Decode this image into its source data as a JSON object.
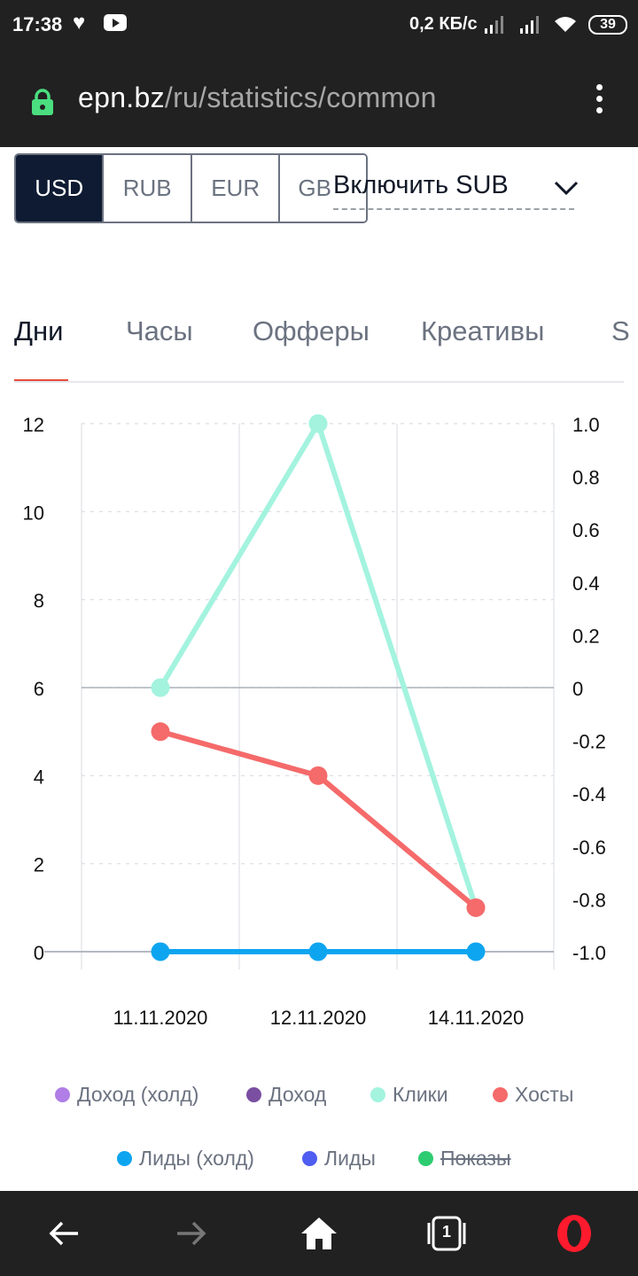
{
  "status_bar": {
    "time": "17:38",
    "network_speed": "0,2 КБ/с",
    "battery": "39"
  },
  "browser": {
    "url_host": "epn.bz",
    "url_path": "/ru/statistics/common"
  },
  "currency": {
    "options": [
      "USD",
      "RUB",
      "EUR",
      "GB"
    ],
    "selected": "USD"
  },
  "sub_toggle_label": "Включить SUB",
  "tabs": [
    {
      "label": "Дни",
      "active": true
    },
    {
      "label": "Часы",
      "active": false
    },
    {
      "label": "Офферы",
      "active": false
    },
    {
      "label": "Креативы",
      "active": false
    },
    {
      "label": "S",
      "active": false
    }
  ],
  "chart_data": {
    "type": "line",
    "categories": [
      "11.11.2020",
      "12.11.2020",
      "14.11.2020"
    ],
    "y_left": {
      "ylim": [
        0,
        12
      ],
      "ticks": [
        "0",
        "2",
        "4",
        "6",
        "8",
        "10",
        "12"
      ]
    },
    "y_right": {
      "ylim": [
        -1.0,
        1.0
      ],
      "ticks": [
        "-1.0",
        "-0.8",
        "-0.6",
        "-0.4",
        "-0.2",
        "0",
        "0.2",
        "0.4",
        "0.6",
        "0.8",
        "1.0"
      ]
    },
    "series": [
      {
        "name": "Клики",
        "color": "#a3f3df",
        "axis": "left",
        "values": [
          6,
          12,
          1
        ]
      },
      {
        "name": "Хосты",
        "color": "#f56a6a",
        "axis": "left",
        "values": [
          5,
          4,
          1
        ]
      },
      {
        "name": "Лиды (холд)",
        "color": "#0ea5f0",
        "axis": "left",
        "values": [
          0,
          0,
          0
        ]
      }
    ],
    "grid": true
  },
  "legend": [
    {
      "label": "Доход (холд)",
      "color": "#b07ee6",
      "hidden": false
    },
    {
      "label": "Доход",
      "color": "#7a4ea0",
      "hidden": false
    },
    {
      "label": "Клики",
      "color": "#a3f3df",
      "hidden": false
    },
    {
      "label": "Хосты",
      "color": "#f56a6a",
      "hidden": false
    },
    {
      "label": "Лиды (холд)",
      "color": "#0ea5f0",
      "hidden": false
    },
    {
      "label": "Лиды",
      "color": "#4f5df0",
      "hidden": false
    },
    {
      "label": "Показы",
      "color": "#2ecc71",
      "hidden": true
    }
  ],
  "nav": {
    "tab_count": "1"
  }
}
